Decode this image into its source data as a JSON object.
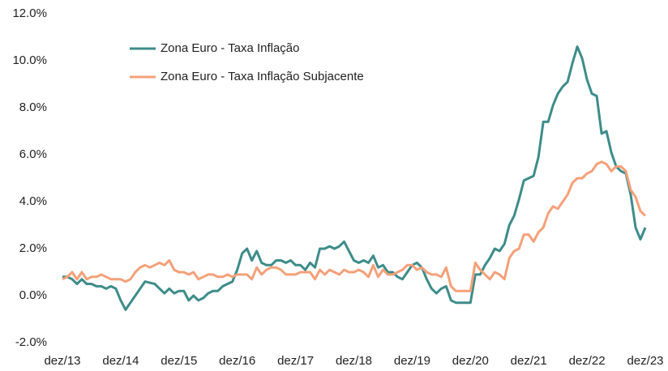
{
  "chart_data": {
    "type": "line",
    "categories": [
      "dez/13",
      null,
      null,
      null,
      null,
      null,
      null,
      null,
      null,
      null,
      null,
      null,
      "dez/14",
      null,
      null,
      null,
      null,
      null,
      null,
      null,
      null,
      null,
      null,
      null,
      "dez/15",
      null,
      null,
      null,
      null,
      null,
      null,
      null,
      null,
      null,
      null,
      null,
      "dez/16",
      null,
      null,
      null,
      null,
      null,
      null,
      null,
      null,
      null,
      null,
      null,
      "dez/17",
      null,
      null,
      null,
      null,
      null,
      null,
      null,
      null,
      null,
      null,
      null,
      "dez/18",
      null,
      null,
      null,
      null,
      null,
      null,
      null,
      null,
      null,
      null,
      null,
      "dez/19",
      null,
      null,
      null,
      null,
      null,
      null,
      null,
      null,
      null,
      null,
      null,
      "dez/20",
      null,
      null,
      null,
      null,
      null,
      null,
      null,
      null,
      null,
      null,
      null,
      "dez/21",
      null,
      null,
      null,
      null,
      null,
      null,
      null,
      null,
      null,
      null,
      null,
      "dez/22",
      null,
      null,
      null,
      null,
      null,
      null,
      null,
      null,
      null,
      null,
      null,
      "dez/23"
    ],
    "series": [
      {
        "name": "Zona Euro - Taxa Inflação",
        "color": "#3d8c89",
        "values": [
          0.8,
          0.8,
          0.7,
          0.5,
          0.7,
          0.5,
          0.5,
          0.4,
          0.4,
          0.3,
          0.4,
          0.3,
          -0.2,
          -0.6,
          -0.3,
          0.0,
          0.3,
          0.6,
          0.55,
          0.5,
          0.3,
          0.1,
          0.3,
          0.1,
          0.2,
          0.2,
          -0.2,
          0.0,
          -0.2,
          -0.1,
          0.1,
          0.2,
          0.2,
          0.4,
          0.5,
          0.6,
          1.1,
          1.8,
          2.0,
          1.5,
          1.9,
          1.4,
          1.3,
          1.3,
          1.5,
          1.5,
          1.4,
          1.5,
          1.3,
          1.3,
          1.1,
          1.4,
          1.2,
          2.0,
          2.0,
          2.1,
          2.0,
          2.1,
          2.3,
          1.9,
          1.5,
          1.4,
          1.5,
          1.4,
          1.7,
          1.2,
          1.3,
          1.0,
          1.0,
          0.8,
          0.7,
          1.0,
          1.3,
          1.4,
          1.2,
          0.7,
          0.3,
          0.1,
          0.3,
          0.4,
          -0.2,
          -0.3,
          -0.3,
          -0.3,
          -0.3,
          0.9,
          0.9,
          1.3,
          1.6,
          2.0,
          1.9,
          2.2,
          3.0,
          3.4,
          4.1,
          4.9,
          5.0,
          5.1,
          5.9,
          7.4,
          7.4,
          8.1,
          8.6,
          8.9,
          9.1,
          9.9,
          10.6,
          10.1,
          9.2,
          8.6,
          8.5,
          6.9,
          7.0,
          6.1,
          5.5,
          5.3,
          5.2,
          4.3,
          2.9,
          2.4,
          2.9
        ]
      },
      {
        "name": "Zona Euro - Taxa Inflação Subjacente",
        "color": "#f4a07a",
        "values": [
          0.7,
          0.8,
          1.0,
          0.7,
          1.0,
          0.7,
          0.8,
          0.8,
          0.9,
          0.8,
          0.7,
          0.7,
          0.7,
          0.6,
          0.7,
          1.0,
          1.2,
          1.3,
          1.2,
          1.3,
          1.4,
          1.3,
          1.5,
          1.1,
          1.0,
          1.0,
          0.9,
          1.0,
          0.7,
          0.8,
          0.9,
          0.9,
          0.8,
          0.8,
          0.9,
          0.8,
          0.9,
          0.9,
          0.9,
          0.7,
          1.2,
          0.9,
          1.1,
          1.2,
          1.2,
          1.1,
          0.9,
          0.9,
          0.9,
          1.0,
          1.0,
          1.0,
          0.7,
          1.1,
          0.9,
          1.1,
          1.0,
          0.9,
          1.1,
          1.0,
          1.0,
          1.1,
          1.0,
          0.8,
          1.3,
          0.8,
          1.1,
          0.9,
          0.9,
          1.0,
          1.1,
          1.3,
          1.3,
          1.1,
          1.2,
          1.0,
          0.9,
          0.9,
          0.8,
          1.2,
          0.4,
          0.2,
          0.2,
          0.2,
          0.2,
          1.4,
          1.1,
          0.9,
          0.7,
          1.0,
          0.9,
          0.7,
          1.6,
          1.9,
          2.0,
          2.6,
          2.6,
          2.3,
          2.7,
          2.9,
          3.5,
          3.8,
          3.7,
          4.0,
          4.3,
          4.8,
          5.0,
          5.0,
          5.2,
          5.3,
          5.6,
          5.7,
          5.6,
          5.3,
          5.5,
          5.5,
          5.3,
          4.5,
          4.2,
          3.6,
          3.4
        ]
      }
    ],
    "ylim": [
      -2,
      12
    ],
    "yticks": [
      {
        "value": -2,
        "label": "-2.0%"
      },
      {
        "value": 0,
        "label": "0.0%"
      },
      {
        "value": 2,
        "label": "2.0%"
      },
      {
        "value": 4,
        "label": "4.0%"
      },
      {
        "value": 6,
        "label": "6.0%"
      },
      {
        "value": 8,
        "label": "8.0%"
      },
      {
        "value": 10,
        "label": "10.0%"
      },
      {
        "value": 12,
        "label": "12.0%"
      }
    ],
    "legend": "upper left",
    "grid": false
  }
}
